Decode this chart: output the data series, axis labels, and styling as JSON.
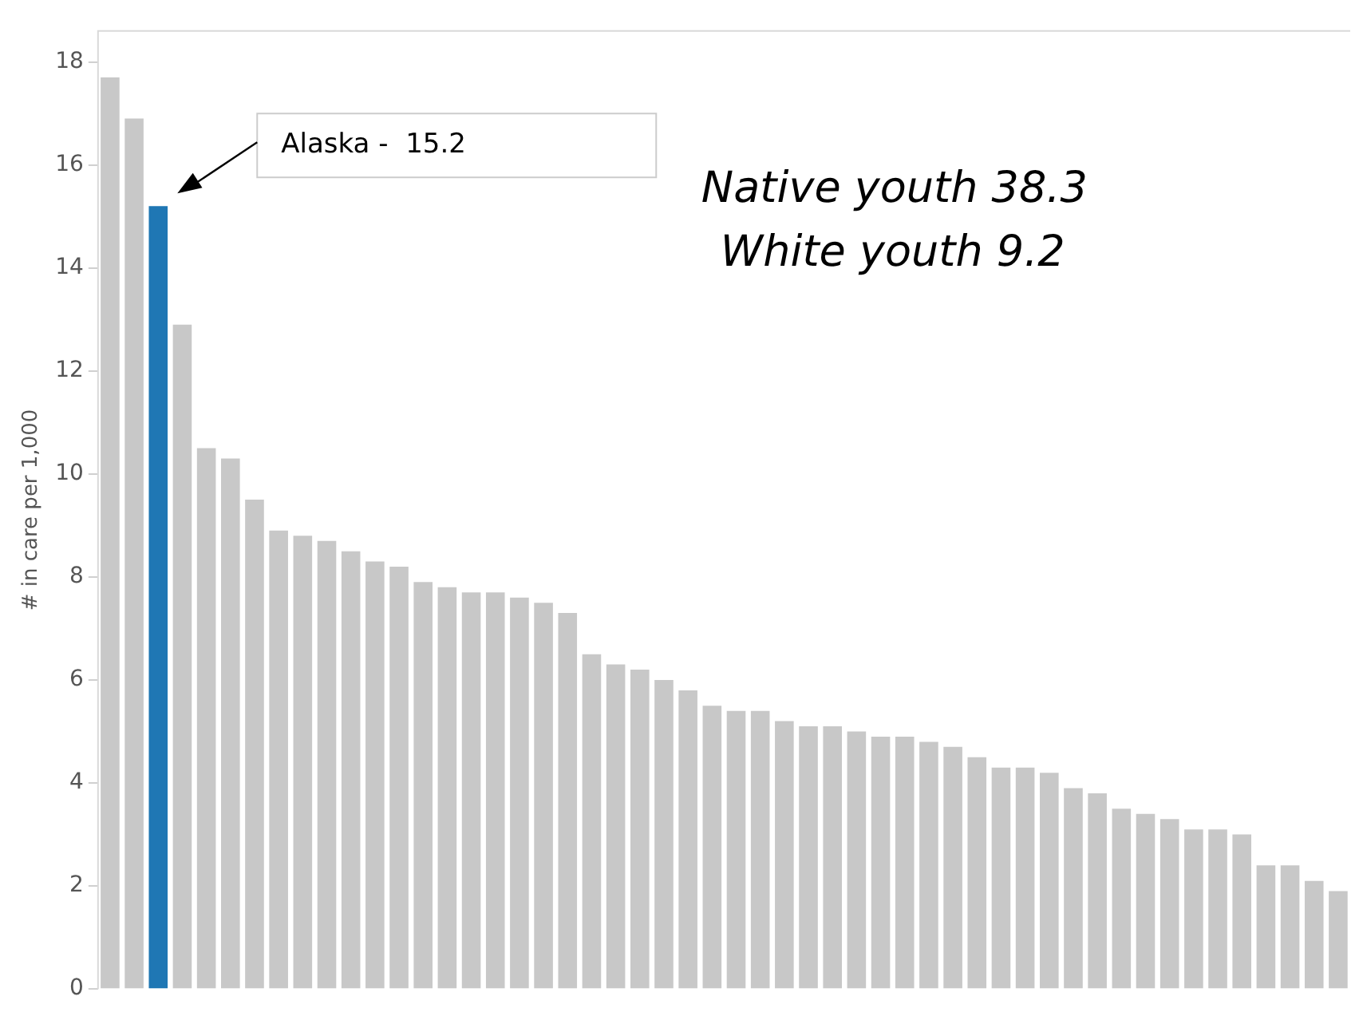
{
  "chart_data": {
    "type": "bar",
    "ylabel": "# in care per 1,000",
    "categories": [
      null,
      null,
      null,
      null,
      null,
      null,
      null,
      null,
      null,
      null,
      null,
      null,
      null,
      null,
      null,
      null,
      null,
      null,
      null,
      null,
      null,
      null,
      null,
      null,
      null,
      null,
      null,
      null,
      null,
      null,
      null,
      null,
      null,
      null,
      null,
      null,
      null,
      null,
      null,
      null,
      null,
      null,
      null,
      null,
      null,
      null,
      null,
      null,
      null,
      null,
      null,
      null
    ],
    "values": [
      17.7,
      16.9,
      15.2,
      12.9,
      10.5,
      10.3,
      9.5,
      8.9,
      8.8,
      8.7,
      8.5,
      8.3,
      8.2,
      7.9,
      7.8,
      7.7,
      7.7,
      7.6,
      7.5,
      7.3,
      6.5,
      6.3,
      6.2,
      6.0,
      5.8,
      5.5,
      5.4,
      5.4,
      5.2,
      5.1,
      5.1,
      5.0,
      4.9,
      4.9,
      4.8,
      4.7,
      4.5,
      4.3,
      4.3,
      4.2,
      3.9,
      3.8,
      3.5,
      3.4,
      3.3,
      3.1,
      3.1,
      3.0,
      2.4,
      2.4,
      2.1,
      1.9
    ],
    "colors": [
      "#c8c8c8",
      "#c8c8c8",
      "#1f77b4",
      "#c8c8c8",
      "#c8c8c8",
      "#c8c8c8",
      "#c8c8c8",
      "#c8c8c8",
      "#c8c8c8",
      "#c8c8c8",
      "#c8c8c8",
      "#c8c8c8",
      "#c8c8c8",
      "#c8c8c8",
      "#c8c8c8",
      "#c8c8c8",
      "#c8c8c8",
      "#c8c8c8",
      "#c8c8c8",
      "#c8c8c8",
      "#c8c8c8",
      "#c8c8c8",
      "#c8c8c8",
      "#c8c8c8",
      "#c8c8c8",
      "#c8c8c8",
      "#c8c8c8",
      "#c8c8c8",
      "#c8c8c8",
      "#c8c8c8",
      "#c8c8c8",
      "#c8c8c8",
      "#c8c8c8",
      "#c8c8c8",
      "#c8c8c8",
      "#c8c8c8",
      "#c8c8c8",
      "#c8c8c8",
      "#c8c8c8",
      "#c8c8c8",
      "#c8c8c8",
      "#c8c8c8",
      "#c8c8c8",
      "#c8c8c8",
      "#c8c8c8",
      "#c8c8c8",
      "#c8c8c8",
      "#c8c8c8",
      "#c8c8c8",
      "#c8c8c8",
      "#c8c8c8",
      "#c8c8c8"
    ],
    "ylim": [
      0,
      18.6
    ],
    "yticks": [
      0,
      2,
      4,
      6,
      8,
      10,
      12,
      14,
      16,
      18
    ],
    "grid": false,
    "legend": false,
    "tick_labels": "y",
    "annotations": [
      "Alaska -  15.2",
      "Native youth 38.3",
      "White youth 9.2"
    ]
  }
}
